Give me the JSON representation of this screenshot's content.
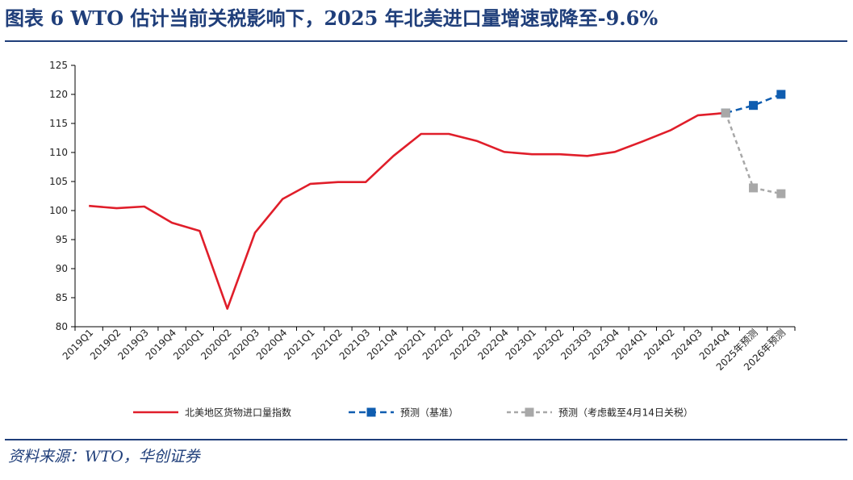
{
  "figure": {
    "title": "图表 6    WTO 估计当前关税影响下，2025 年北美进口量增速或降至-9.6%",
    "source": "资料来源：WTO，华创证券"
  },
  "chart_data": {
    "type": "line",
    "title": "",
    "xlabel": "",
    "ylabel": "",
    "ylim": [
      80,
      125
    ],
    "yticks": [
      80,
      85,
      90,
      95,
      100,
      105,
      110,
      115,
      120,
      125
    ],
    "categories": [
      "2019Q1",
      "2019Q2",
      "2019Q3",
      "2019Q4",
      "2020Q1",
      "2020Q2",
      "2020Q3",
      "2020Q4",
      "2021Q1",
      "2021Q2",
      "2021Q3",
      "2021Q4",
      "2022Q1",
      "2022Q2",
      "2022Q3",
      "2022Q4",
      "2023Q1",
      "2023Q2",
      "2023Q3",
      "2023Q4",
      "2024Q1",
      "2024Q2",
      "2024Q3",
      "2024Q4",
      "2025年预测",
      "2026年预测"
    ],
    "grid": false,
    "legend_position": "bottom",
    "series": [
      {
        "name": "北美地区货物进口量指数",
        "color": "#e01e2a",
        "style": "solid",
        "marker": "none",
        "values": [
          100.8,
          100.4,
          100.7,
          97.9,
          96.5,
          83.1,
          96.2,
          102.0,
          104.6,
          104.9,
          104.9,
          109.4,
          113.2,
          113.2,
          112.0,
          110.1,
          109.7,
          109.7,
          109.4,
          110.1,
          111.9,
          113.8,
          116.4,
          116.8,
          null,
          null
        ]
      },
      {
        "name": "预测（基准）",
        "color": "#0f5db0",
        "style": "dashed",
        "marker": "square",
        "values": [
          null,
          null,
          null,
          null,
          null,
          null,
          null,
          null,
          null,
          null,
          null,
          null,
          null,
          null,
          null,
          null,
          null,
          null,
          null,
          null,
          null,
          null,
          null,
          116.8,
          118.1,
          120.0
        ]
      },
      {
        "name": "预测（考虑截至4月14日关税）",
        "color": "#a8a8a8",
        "style": "dashed",
        "marker": "square",
        "values": [
          null,
          null,
          null,
          null,
          null,
          null,
          null,
          null,
          null,
          null,
          null,
          null,
          null,
          null,
          null,
          null,
          null,
          null,
          null,
          null,
          null,
          null,
          null,
          116.8,
          103.9,
          102.9
        ]
      }
    ]
  }
}
